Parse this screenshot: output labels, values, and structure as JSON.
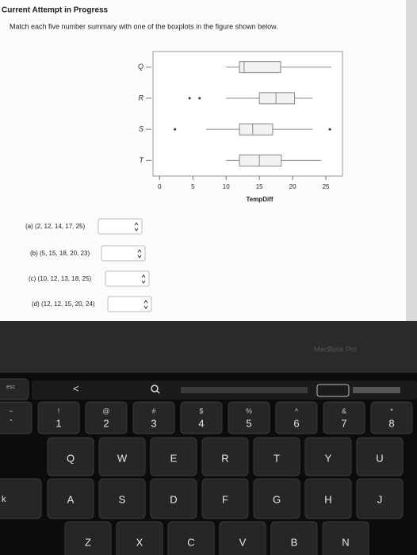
{
  "header": {
    "title": "Current Attempt in Progress"
  },
  "question": "Match each five number summary with one of the boxplots in the figure shown below.",
  "chart_data": {
    "type": "boxplot",
    "categories": [
      "Q",
      "R",
      "S",
      "T"
    ],
    "whisker_low": [
      10,
      10,
      7,
      10
    ],
    "q1": [
      12,
      15,
      12,
      12
    ],
    "median": [
      12.7,
      17.5,
      14,
      15
    ],
    "q3": [
      18.2,
      20.3,
      17,
      18.3
    ],
    "whisker_high": [
      25.8,
      23,
      23,
      24.3
    ],
    "outliers": [
      [],
      [
        4.5,
        6
      ],
      [
        2.3,
        25.6
      ],
      []
    ],
    "color": "#888888",
    "xlabel": "TempDiff",
    "xlim": [
      -1,
      27.5
    ],
    "xticks": [
      0,
      5,
      10,
      15,
      20,
      25
    ]
  },
  "answers": [
    "(a) (2, 12, 14, 17, 25)",
    "(b) (5, 15, 18, 20, 23)",
    "(c) (10, 12, 13, 18, 25)",
    "(d) (12, 12, 15, 20, 24)"
  ],
  "laptop_label": "MacBook Pro",
  "keyboard": {
    "esc": "esc",
    "touchbar_back": "<",
    "caps_fragment": "k",
    "number_row": [
      {
        "top": "~",
        "main": "`"
      },
      {
        "top": "!",
        "main": "1"
      },
      {
        "top": "@",
        "main": "2"
      },
      {
        "top": "#",
        "main": "3"
      },
      {
        "top": "$",
        "main": "4"
      },
      {
        "top": "%",
        "main": "5"
      },
      {
        "top": "^",
        "main": "6"
      },
      {
        "top": "&",
        "main": "7"
      },
      {
        "top": "*",
        "main": "8"
      }
    ],
    "rows": [
      [
        "Q",
        "W",
        "E",
        "R",
        "T",
        "Y",
        "U"
      ],
      [
        "A",
        "S",
        "D",
        "F",
        "G",
        "H",
        "J"
      ],
      [
        "Z",
        "X",
        "C",
        "V",
        "B",
        "N"
      ]
    ]
  }
}
